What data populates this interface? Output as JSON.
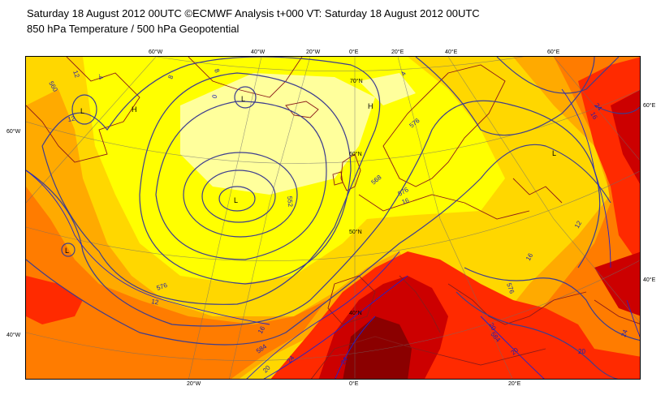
{
  "header": {
    "line1": "Saturday 18 August 2012 00UTC ©ECMWF Analysis t+000 VT: Saturday 18 August 2012 00UTC",
    "line2": "850 hPa Temperature / 500 hPa Geopotential"
  },
  "colors": {
    "pale_yellow": "#ffff9c",
    "yellow": "#ffff00",
    "gold": "#ffd700",
    "orange": "#ffaa00",
    "dark_orange": "#ff7c00",
    "red": "#ff2a00",
    "dark_red": "#cc0000",
    "maroon": "#8b0000",
    "geopotential_contour": "#3d3d8f",
    "temperature_contour": "#2222cc",
    "coastline": "#8b1a1a"
  },
  "top_longitude_labels": [
    "60°W",
    "40°W",
    "20°W",
    "0°E",
    "20°E",
    "40°E",
    "60°E"
  ],
  "bottom_longitude_labels": [
    "20°W",
    "0°E",
    "20°E"
  ],
  "left_latitude_labels": [
    "60°W",
    "40°W"
  ],
  "right_latitude_labels": [
    "60°E",
    "40°E"
  ],
  "interior_latitude_labels": [
    "70°N",
    "60°N",
    "50°N",
    "40°N"
  ],
  "pressure_centers": [
    "L",
    "H",
    "L",
    "H",
    "L",
    "L",
    "L"
  ],
  "geopotential_labels": [
    "560",
    "552",
    "576",
    "568",
    "584",
    "576",
    "576",
    "584",
    "576"
  ],
  "temperature_labels": [
    "12",
    "-4",
    "8",
    "8",
    "12",
    "0",
    "4",
    "16",
    "12",
    "12",
    "16",
    "20",
    "20",
    "24",
    "24",
    "16",
    "20",
    "24",
    "20",
    "16",
    "24"
  ]
}
